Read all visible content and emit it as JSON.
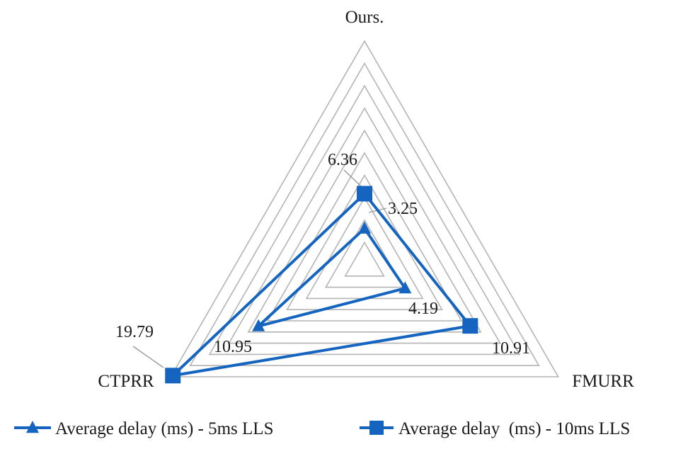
{
  "chart_data": {
    "type": "radar",
    "axes": [
      "Ours.",
      "FMURR",
      "CTPRR"
    ],
    "range": [
      0,
      20
    ],
    "gridlines": 10,
    "series": [
      {
        "name": "Average delay (ms) - 5ms LLS",
        "marker": "triangle",
        "values": [
          3.25,
          4.19,
          10.95
        ],
        "labels": [
          "3.25",
          "4.19",
          "10.95"
        ]
      },
      {
        "name": "Average delay  (ms) - 10ms LLS",
        "marker": "square",
        "values": [
          6.36,
          10.91,
          19.79
        ],
        "labels": [
          "6.36",
          "10.91",
          "19.79"
        ]
      }
    ],
    "legend_position": "bottom",
    "colors": {
      "series": "#1565C0",
      "grid": "#B4B4B4",
      "text": "#1a1a1a"
    }
  }
}
